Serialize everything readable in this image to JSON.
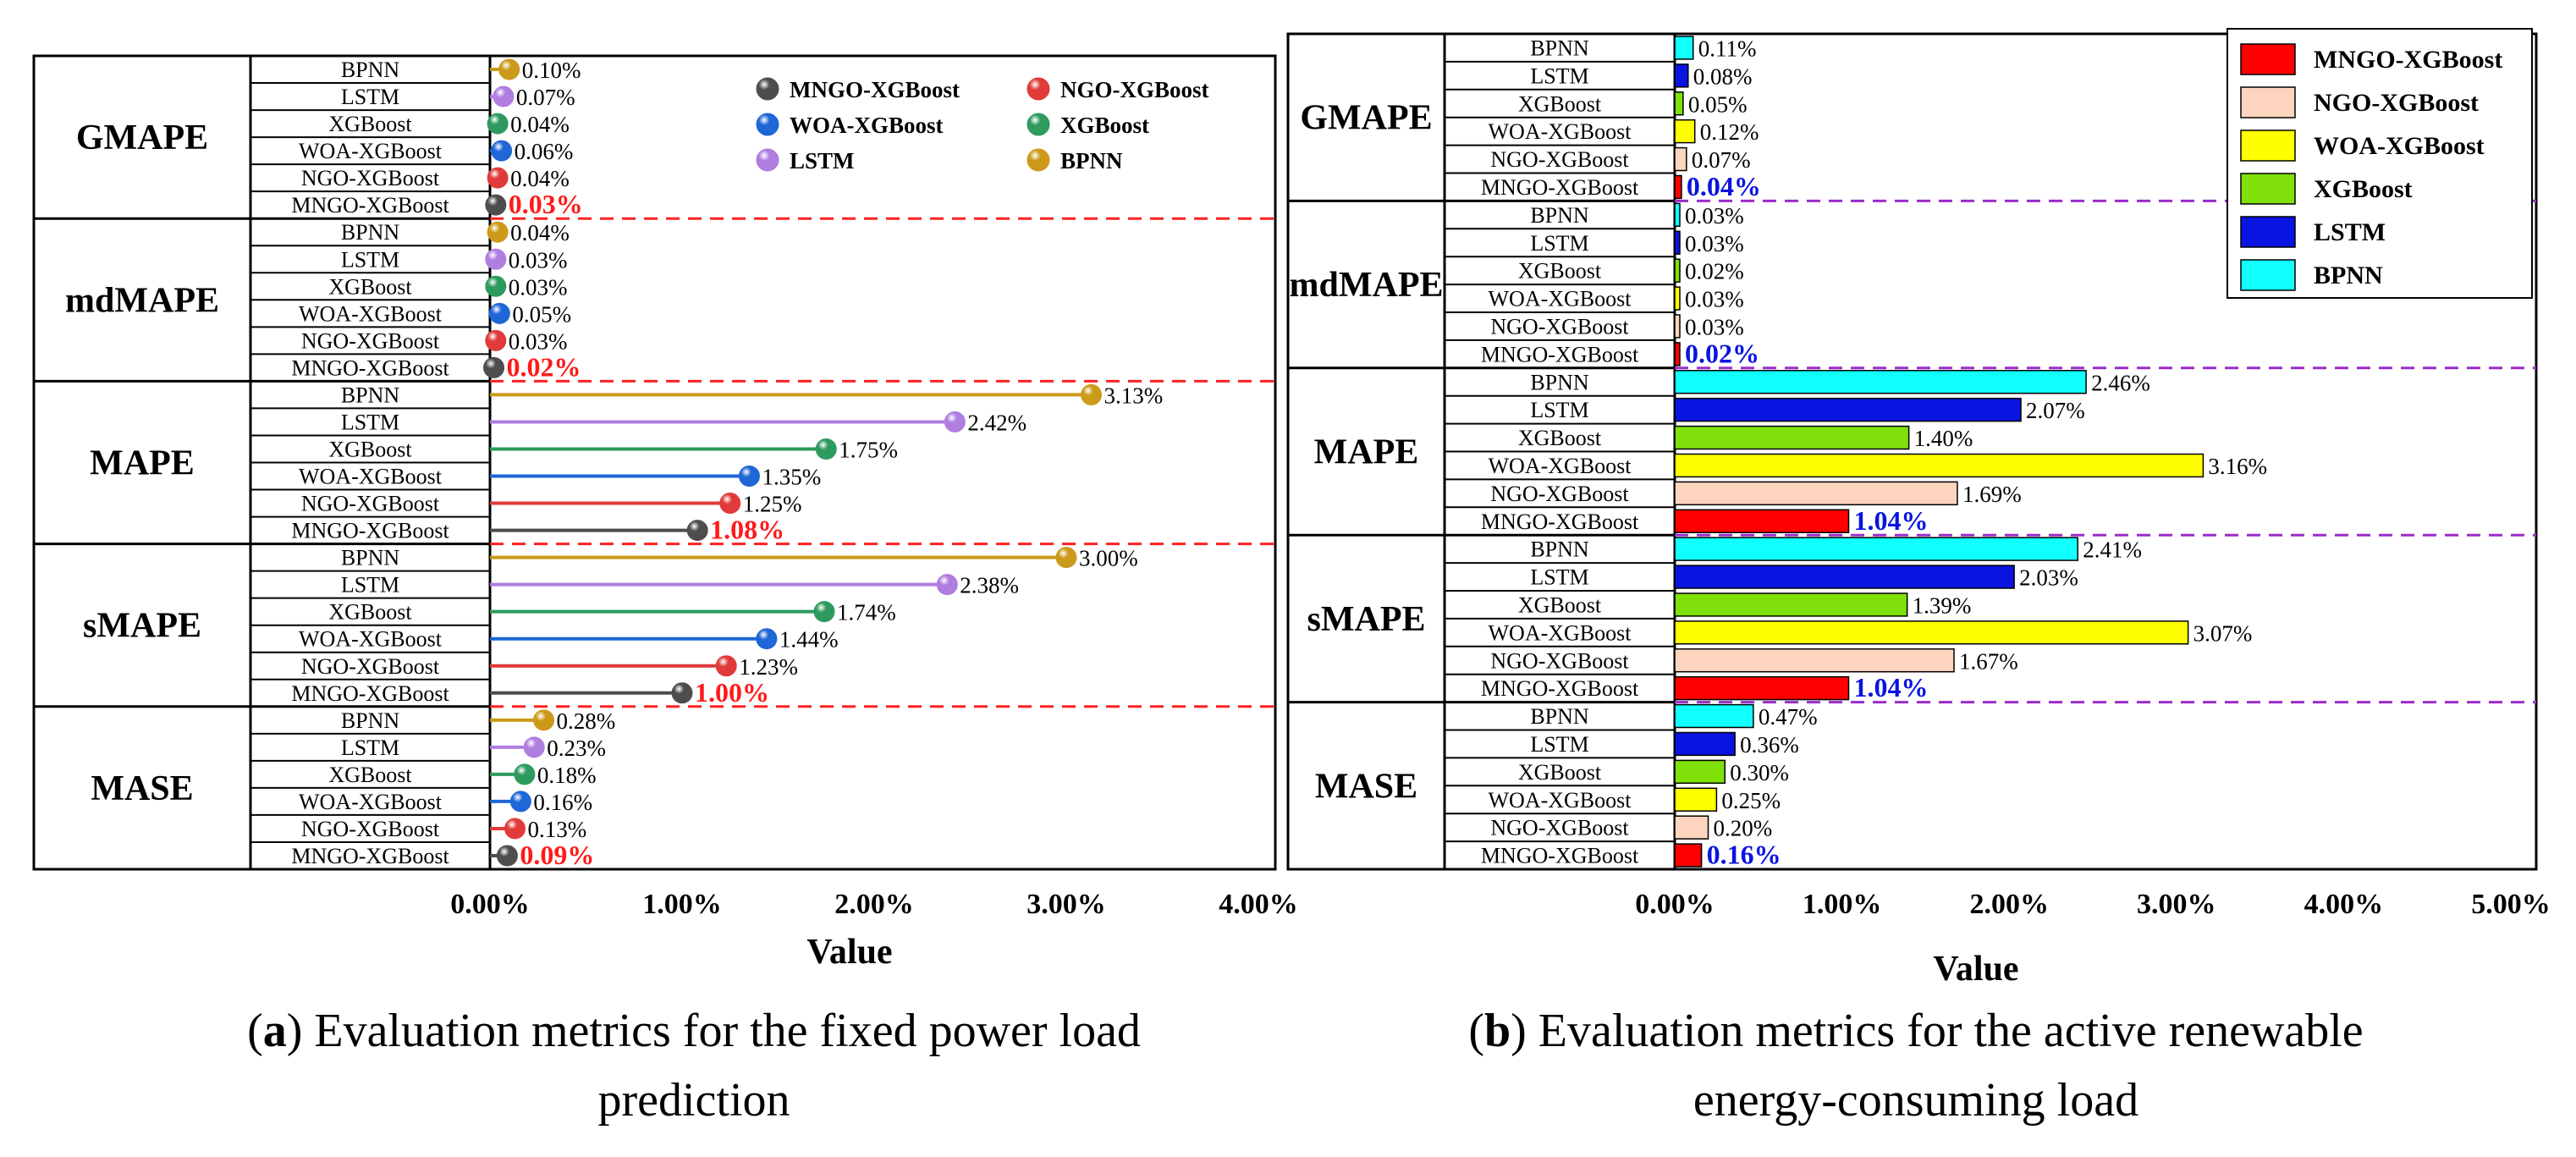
{
  "chart_data": [
    {
      "id": "a",
      "type": "lollipop",
      "metrics": [
        "GMAPE",
        "mdMAPE",
        "MAPE",
        "sMAPE",
        "MASE"
      ],
      "models": [
        "BPNN",
        "LSTM",
        "XGBoost",
        "WOA-XGBoost",
        "NGO-XGBoost",
        "MNGO-XGBoost"
      ],
      "series": [
        {
          "metric": "GMAPE",
          "values": [
            0.1,
            0.07,
            0.04,
            0.06,
            0.04,
            0.03
          ],
          "labels": [
            "0.10%",
            "0.07%",
            "0.04%",
            "0.06%",
            "0.04%",
            "0.03%"
          ]
        },
        {
          "metric": "mdMAPE",
          "values": [
            0.04,
            0.03,
            0.03,
            0.05,
            0.03,
            0.02
          ],
          "labels": [
            "0.04%",
            "0.03%",
            "0.03%",
            "0.05%",
            "0.03%",
            "0.02%"
          ]
        },
        {
          "metric": "MAPE",
          "values": [
            3.13,
            2.42,
            1.75,
            1.35,
            1.25,
            1.08
          ],
          "labels": [
            "3.13%",
            "2.42%",
            "1.75%",
            "1.35%",
            "1.25%",
            "1.08%"
          ]
        },
        {
          "metric": "sMAPE",
          "values": [
            3.0,
            2.38,
            1.74,
            1.44,
            1.23,
            1.0
          ],
          "labels": [
            "3.00%",
            "2.38%",
            "1.74%",
            "1.44%",
            "1.23%",
            "1.00%"
          ]
        },
        {
          "metric": "MASE",
          "values": [
            0.28,
            0.23,
            0.18,
            0.16,
            0.13,
            0.09
          ],
          "labels": [
            "0.28%",
            "0.23%",
            "0.18%",
            "0.16%",
            "0.13%",
            "0.09%"
          ]
        }
      ],
      "colors": {
        "BPNN": "#cc9a1a",
        "LSTM": "#b07de0",
        "XGBoost": "#2e9a5e",
        "WOA-XGBoost": "#1f66d6",
        "NGO-XGBoost": "#e03a3a",
        "MNGO-XGBoost": "#4d4d4d"
      },
      "legend": [
        "MNGO-XGBoost",
        "NGO-XGBoost",
        "WOA-XGBoost",
        "XGBoost",
        "LSTM",
        "BPNN"
      ],
      "legend_position": "top-right",
      "xlabel": "Value",
      "xlim": [
        0,
        4
      ],
      "xticks": [
        "0.00%",
        "1.00%",
        "2.00%",
        "3.00%",
        "4.00%"
      ],
      "caption_letter": "a",
      "caption_line1": ") Evaluation metrics for the fixed power load",
      "caption_line2": "prediction"
    },
    {
      "id": "b",
      "type": "bar",
      "metrics": [
        "GMAPE",
        "mdMAPE",
        "MAPE",
        "sMAPE",
        "MASE"
      ],
      "models": [
        "BPNN",
        "LSTM",
        "XGBoost",
        "WOA-XGBoost",
        "NGO-XGBoost",
        "MNGO-XGBoost"
      ],
      "series": [
        {
          "metric": "GMAPE",
          "values": [
            0.11,
            0.08,
            0.05,
            0.12,
            0.07,
            0.04
          ],
          "labels": [
            "0.11%",
            "0.08%",
            "0.05%",
            "0.12%",
            "0.07%",
            "0.04%"
          ]
        },
        {
          "metric": "mdMAPE",
          "values": [
            0.03,
            0.03,
            0.02,
            0.03,
            0.03,
            0.02
          ],
          "labels": [
            "0.03%",
            "0.03%",
            "0.02%",
            "0.03%",
            "0.03%",
            "0.02%"
          ]
        },
        {
          "metric": "MAPE",
          "values": [
            2.46,
            2.07,
            1.4,
            3.16,
            1.69,
            1.04
          ],
          "labels": [
            "2.46%",
            "2.07%",
            "1.40%",
            "3.16%",
            "1.69%",
            "1.04%"
          ]
        },
        {
          "metric": "sMAPE",
          "values": [
            2.41,
            2.03,
            1.39,
            3.07,
            1.67,
            1.04
          ],
          "labels": [
            "2.41%",
            "2.03%",
            "1.39%",
            "3.07%",
            "1.67%",
            "1.04%"
          ]
        },
        {
          "metric": "MASE",
          "values": [
            0.47,
            0.36,
            0.3,
            0.25,
            0.2,
            0.16
          ],
          "labels": [
            "0.47%",
            "0.36%",
            "0.30%",
            "0.25%",
            "0.20%",
            "0.16%"
          ]
        }
      ],
      "colors": {
        "MNGO-XGBoost": "#ff0000",
        "NGO-XGBoost": "#fdd5bf",
        "WOA-XGBoost": "#ffff00",
        "XGBoost": "#7fe00a",
        "LSTM": "#0a14e0",
        "BPNN": "#10ffff"
      },
      "legend": [
        "MNGO-XGBoost",
        "NGO-XGBoost",
        "WOA-XGBoost",
        "XGBoost",
        "LSTM",
        "BPNN"
      ],
      "legend_position": "top-right",
      "xlabel": "Value",
      "xlim": [
        0,
        5
      ],
      "xticks": [
        "0.00%",
        "1.00%",
        "2.00%",
        "3.00%",
        "4.00%",
        "5.00%"
      ],
      "caption_letter": "b",
      "caption_line1": ") Evaluation metrics for the active renewable",
      "caption_line2": "energy-consuming load"
    }
  ]
}
